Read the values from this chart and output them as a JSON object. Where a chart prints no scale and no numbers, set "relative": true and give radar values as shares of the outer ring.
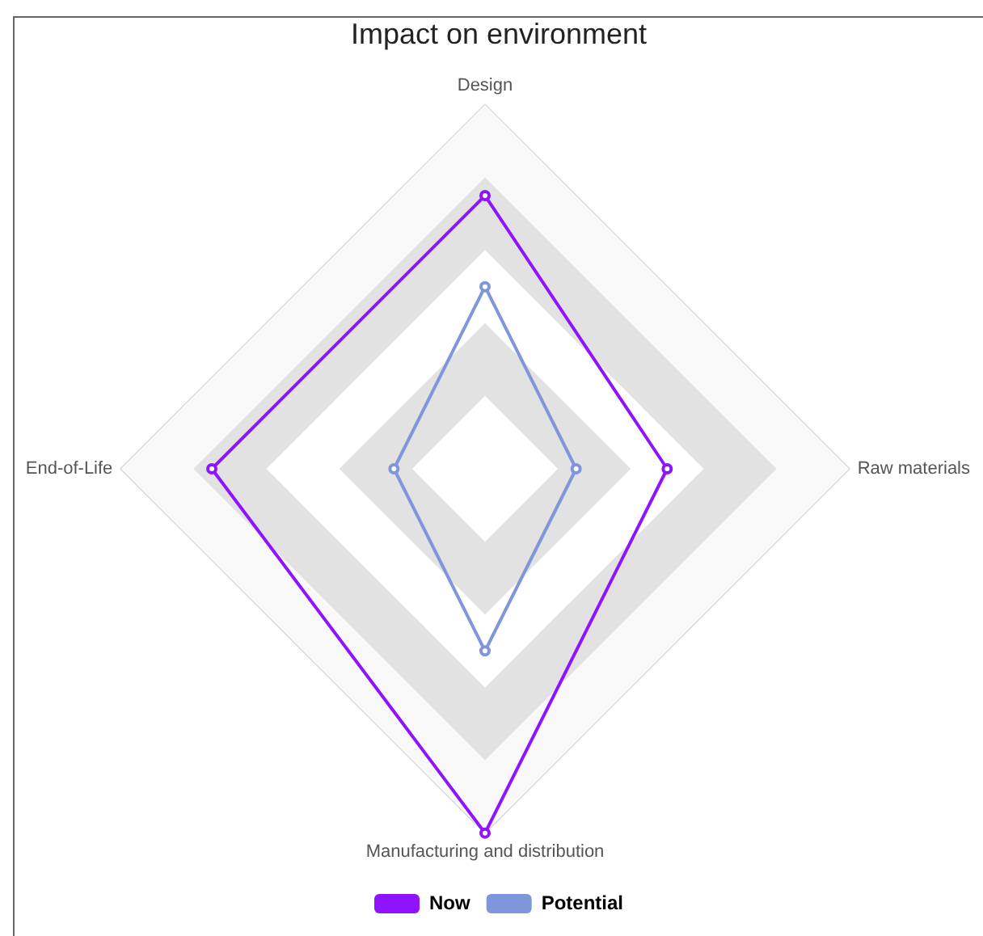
{
  "chart_data": {
    "type": "radar",
    "title": "Impact on environment",
    "categories": [
      "Design",
      "Raw materials",
      "Manufacturing and distribution",
      "End-of-Life"
    ],
    "relative": true,
    "legend": "bottom",
    "marker": "circle",
    "series": [
      {
        "name": "Now",
        "color": "#9013fe",
        "values": [
          0.75,
          0.5,
          1,
          0.75
        ]
      },
      {
        "name": "Potential",
        "color": "#7f96db",
        "values": [
          0.5,
          0.25,
          0.5,
          0.25
        ]
      }
    ]
  }
}
